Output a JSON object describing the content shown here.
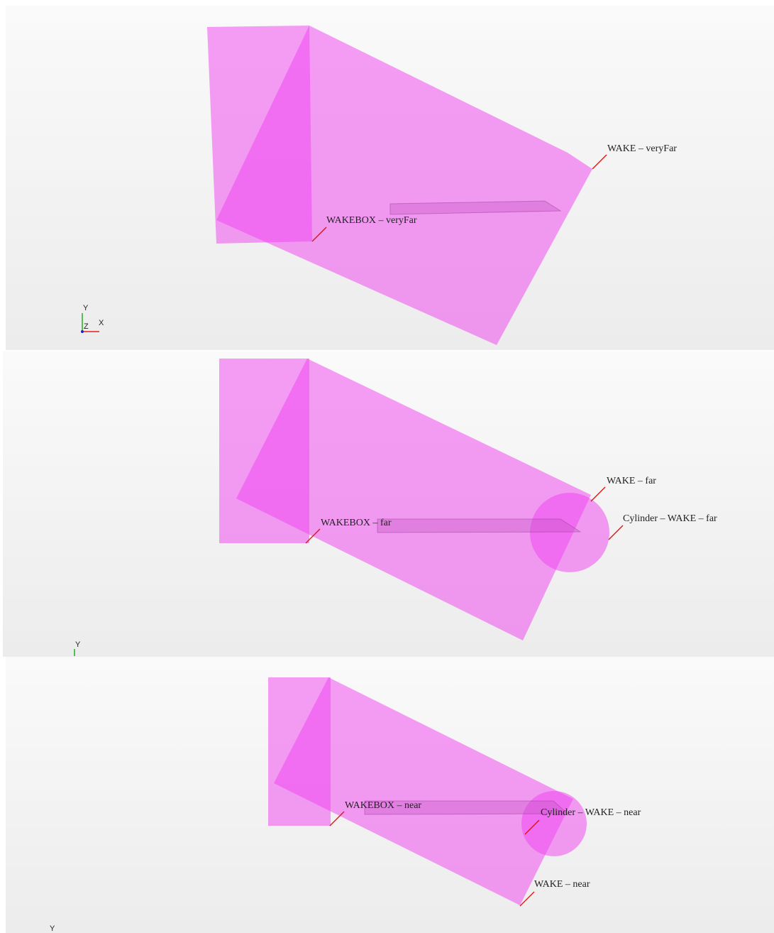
{
  "panels": [
    {
      "labels": [
        "WAKE – veryFar",
        "WAKEBOX – veryFar"
      ],
      "axes": [
        "Y",
        "Z",
        "X"
      ]
    },
    {
      "labels": [
        "WAKE – far",
        "Cylinder – WAKE – far",
        "WAKEBOX – far"
      ],
      "axes": [
        "Y"
      ]
    },
    {
      "labels": [
        "WAKEBOX – near",
        "Cylinder – WAKE – near",
        "WAKE – near"
      ],
      "axes": [
        "Y"
      ]
    }
  ]
}
